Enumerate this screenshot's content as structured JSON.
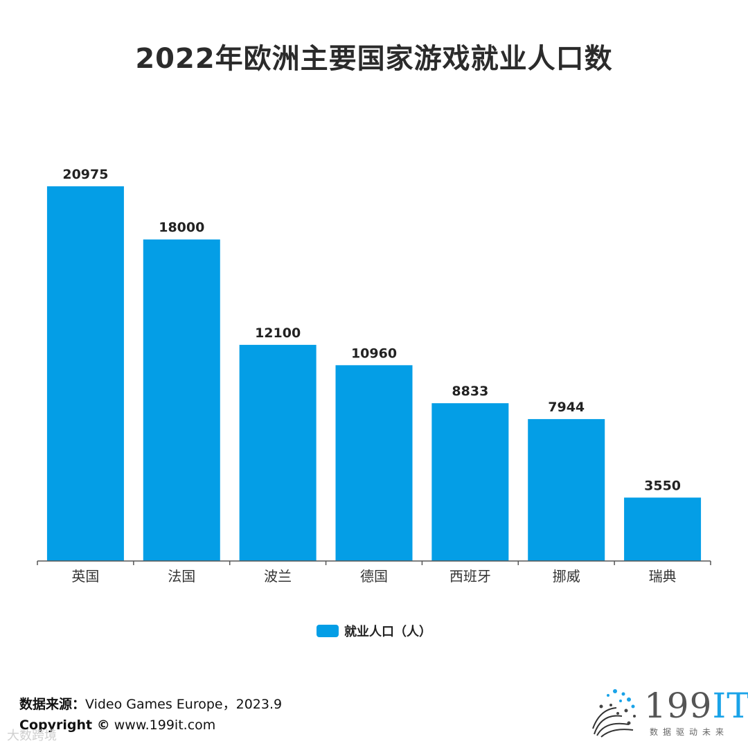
{
  "title": "2022年欧洲主要国家游戏就业人口数",
  "colors": {
    "bar": "#049ee6",
    "axis": "#555555",
    "label": "#222222"
  },
  "chart_data": {
    "type": "bar",
    "categories": [
      "英国",
      "法国",
      "波兰",
      "德国",
      "西班牙",
      "挪威",
      "瑞典"
    ],
    "series": [
      {
        "name": "就业人口（人）",
        "values": [
          20975,
          18000,
          12100,
          10960,
          8833,
          7944,
          3550
        ]
      }
    ],
    "data_labels": [
      "20975",
      "18000",
      "12100",
      "10960",
      "8833",
      "7944",
      "3550"
    ],
    "ylim": [
      0,
      21000
    ],
    "grid": false,
    "legend_position": "bottom-center"
  },
  "legend": {
    "label": "就业人口（人）"
  },
  "footer": {
    "source_label": "数据来源：",
    "source_text": "Video Games Europe，2023.9",
    "copyright_label": "Copyright ©",
    "copyright_text": " www.199it.com"
  },
  "watermark": "大数跨境",
  "logo": {
    "main": "199",
    "accent": "IT",
    "subtitle": "数据驱动未来"
  }
}
